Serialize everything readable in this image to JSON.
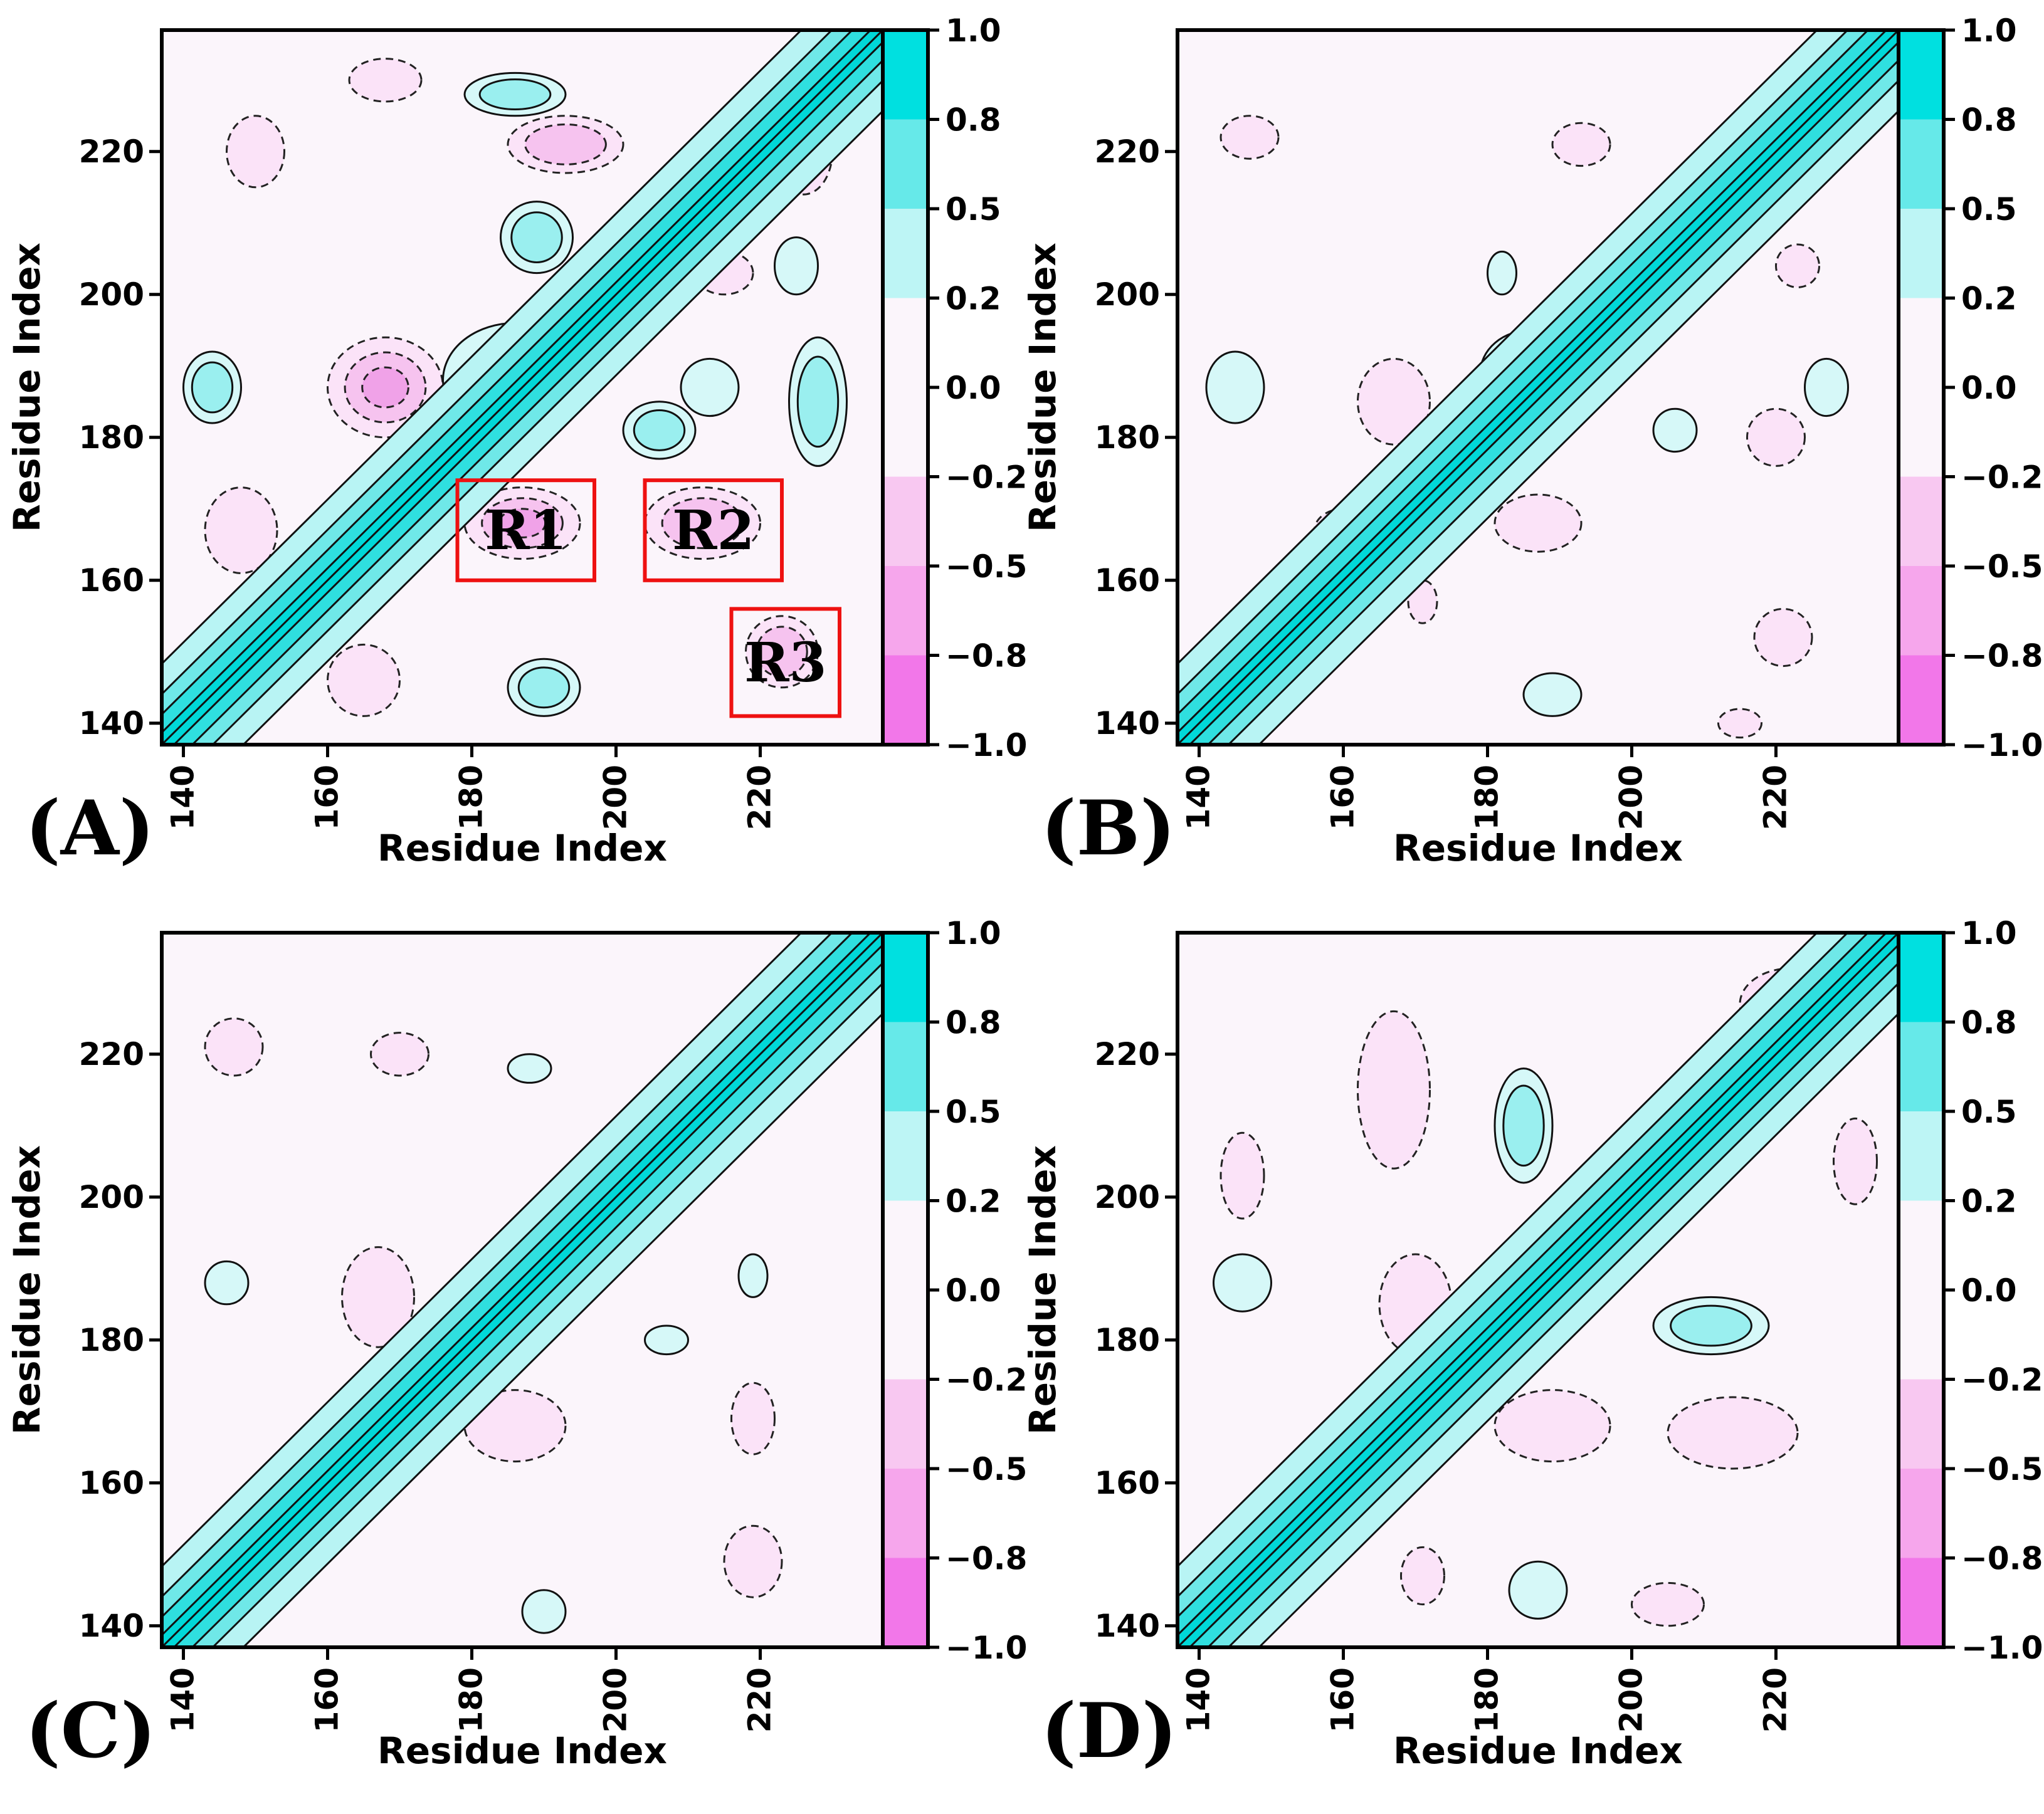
{
  "figure": {
    "title": ""
  },
  "chart_data": [
    {
      "type": "heatmap",
      "panel": "(A)",
      "xlabel": "Residue Index",
      "ylabel": "Residue Index",
      "xlim": [
        137,
        237
      ],
      "ylim": [
        137,
        237
      ],
      "xticks": [
        140,
        160,
        180,
        200,
        220
      ],
      "yticks": [
        140,
        160,
        180,
        200,
        220
      ],
      "diagonal": {
        "range": [
          137,
          237
        ],
        "value": 1.0
      },
      "positive_blobs": [
        {
          "x": 186,
          "y": 188,
          "rx": 10,
          "ry": 8,
          "value": 0.65
        },
        {
          "x": 145,
          "y": 145,
          "rx": 5,
          "ry": 5,
          "value": 0.5
        },
        {
          "x": 190,
          "y": 145,
          "rx": 5,
          "ry": 4,
          "value": 0.4
        },
        {
          "x": 206,
          "y": 181,
          "rx": 5,
          "ry": 4,
          "value": 0.4
        },
        {
          "x": 228,
          "y": 185,
          "rx": 4,
          "ry": 9,
          "value": 0.35
        },
        {
          "x": 189,
          "y": 208,
          "rx": 5,
          "ry": 5,
          "value": 0.4
        },
        {
          "x": 144,
          "y": 187,
          "rx": 4,
          "ry": 5,
          "value": 0.35
        },
        {
          "x": 186,
          "y": 228,
          "rx": 7,
          "ry": 3,
          "value": 0.35
        },
        {
          "x": 225,
          "y": 204,
          "rx": 3,
          "ry": 4,
          "value": 0.3
        },
        {
          "x": 213,
          "y": 187,
          "rx": 4,
          "ry": 4,
          "value": 0.3
        }
      ],
      "negative_blobs": [
        {
          "x": 168,
          "y": 187,
          "rx": 8,
          "ry": 7,
          "value": -0.55
        },
        {
          "x": 187,
          "y": 168,
          "rx": 8,
          "ry": 5,
          "value": -0.5
        },
        {
          "x": 212,
          "y": 168,
          "rx": 8,
          "ry": 5,
          "value": -0.35
        },
        {
          "x": 223,
          "y": 150,
          "rx": 5,
          "ry": 5,
          "value": -0.4
        },
        {
          "x": 148,
          "y": 167,
          "rx": 5,
          "ry": 6,
          "value": -0.3
        },
        {
          "x": 165,
          "y": 146,
          "rx": 5,
          "ry": 5,
          "value": -0.3
        },
        {
          "x": 193,
          "y": 221,
          "rx": 8,
          "ry": 4,
          "value": -0.35
        },
        {
          "x": 150,
          "y": 220,
          "rx": 4,
          "ry": 5,
          "value": -0.3
        },
        {
          "x": 168,
          "y": 230,
          "rx": 5,
          "ry": 3,
          "value": -0.3
        },
        {
          "x": 215,
          "y": 203,
          "rx": 4,
          "ry": 3,
          "value": -0.3
        },
        {
          "x": 226,
          "y": 220,
          "rx": 4,
          "ry": 6,
          "value": -0.3
        },
        {
          "x": 216,
          "y": 222,
          "rx": 4,
          "ry": 3,
          "value": -0.3
        }
      ],
      "regions": [
        {
          "label": "R1",
          "x": [
            178,
            197
          ],
          "y": [
            160,
            174
          ]
        },
        {
          "label": "R2",
          "x": [
            204,
            223
          ],
          "y": [
            160,
            174
          ]
        },
        {
          "label": "R3",
          "x": [
            216,
            231
          ],
          "y": [
            141,
            156
          ]
        }
      ]
    },
    {
      "type": "heatmap",
      "panel": "(B)",
      "xlabel": "Residue Index",
      "ylabel": "Residue Index",
      "xlim": [
        137,
        237
      ],
      "ylim": [
        137,
        237
      ],
      "xticks": [
        140,
        160,
        180,
        200,
        220
      ],
      "yticks": [
        140,
        160,
        180,
        200,
        220
      ],
      "diagonal": {
        "range": [
          137,
          237
        ],
        "value": 1.0
      },
      "positive_blobs": [
        {
          "x": 186,
          "y": 189,
          "rx": 7,
          "ry": 6,
          "value": 0.55
        },
        {
          "x": 145,
          "y": 187,
          "rx": 4,
          "ry": 5,
          "value": 0.3
        },
        {
          "x": 189,
          "y": 144,
          "rx": 4,
          "ry": 3,
          "value": 0.3
        },
        {
          "x": 206,
          "y": 181,
          "rx": 3,
          "ry": 3,
          "value": 0.25
        },
        {
          "x": 227,
          "y": 187,
          "rx": 3,
          "ry": 4,
          "value": 0.25
        },
        {
          "x": 182,
          "y": 203,
          "rx": 2,
          "ry": 3,
          "value": 0.25
        }
      ],
      "negative_blobs": [
        {
          "x": 167,
          "y": 185,
          "rx": 5,
          "ry": 6,
          "value": -0.3
        },
        {
          "x": 187,
          "y": 168,
          "rx": 6,
          "ry": 4,
          "value": -0.3
        },
        {
          "x": 220,
          "y": 180,
          "rx": 4,
          "ry": 4,
          "value": -0.3
        },
        {
          "x": 221,
          "y": 152,
          "rx": 4,
          "ry": 4,
          "value": -0.3
        },
        {
          "x": 147,
          "y": 222,
          "rx": 4,
          "ry": 3,
          "value": -0.3
        },
        {
          "x": 193,
          "y": 221,
          "rx": 4,
          "ry": 3,
          "value": -0.3
        },
        {
          "x": 223,
          "y": 204,
          "rx": 3,
          "ry": 3,
          "value": -0.25
        },
        {
          "x": 171,
          "y": 157,
          "rx": 2,
          "ry": 3,
          "value": -0.25
        },
        {
          "x": 160,
          "y": 167,
          "rx": 4,
          "ry": 3,
          "value": -0.25
        },
        {
          "x": 215,
          "y": 140,
          "rx": 3,
          "ry": 2,
          "value": -0.25
        }
      ],
      "regions": []
    },
    {
      "type": "heatmap",
      "panel": "(C)",
      "xlabel": "Residue Index",
      "ylabel": "Residue Index",
      "xlim": [
        137,
        237
      ],
      "ylim": [
        137,
        237
      ],
      "xticks": [
        140,
        160,
        180,
        200,
        220
      ],
      "yticks": [
        140,
        160,
        180,
        200,
        220
      ],
      "diagonal": {
        "range": [
          137,
          237
        ],
        "value": 1.0
      },
      "positive_blobs": [
        {
          "x": 189,
          "y": 190,
          "rx": 6,
          "ry": 5,
          "value": 0.5
        },
        {
          "x": 146,
          "y": 188,
          "rx": 3,
          "ry": 3,
          "value": 0.25
        },
        {
          "x": 190,
          "y": 142,
          "rx": 3,
          "ry": 3,
          "value": 0.25
        },
        {
          "x": 207,
          "y": 180,
          "rx": 3,
          "ry": 2,
          "value": 0.25
        },
        {
          "x": 188,
          "y": 218,
          "rx": 3,
          "ry": 2,
          "value": 0.25
        },
        {
          "x": 219,
          "y": 189,
          "rx": 2,
          "ry": 3,
          "value": 0.25
        }
      ],
      "negative_blobs": [
        {
          "x": 167,
          "y": 186,
          "rx": 5,
          "ry": 7,
          "value": -0.3
        },
        {
          "x": 186,
          "y": 168,
          "rx": 7,
          "ry": 5,
          "value": -0.3
        },
        {
          "x": 219,
          "y": 149,
          "rx": 4,
          "ry": 5,
          "value": -0.3
        },
        {
          "x": 147,
          "y": 221,
          "rx": 4,
          "ry": 4,
          "value": -0.3
        },
        {
          "x": 170,
          "y": 220,
          "rx": 4,
          "ry": 3,
          "value": -0.25
        },
        {
          "x": 219,
          "y": 169,
          "rx": 3,
          "ry": 5,
          "value": -0.25
        }
      ],
      "regions": []
    },
    {
      "type": "heatmap",
      "panel": "(D)",
      "xlabel": "Residue Index",
      "ylabel": "Residue Index",
      "xlim": [
        137,
        237
      ],
      "ylim": [
        137,
        237
      ],
      "xticks": [
        140,
        160,
        180,
        200,
        220
      ],
      "yticks": [
        140,
        160,
        180,
        200,
        220
      ],
      "diagonal": {
        "range": [
          137,
          237
        ],
        "value": 1.0
      },
      "positive_blobs": [
        {
          "x": 209,
          "y": 209,
          "rx": 8,
          "ry": 7,
          "value": 0.6
        },
        {
          "x": 184,
          "y": 184,
          "rx": 5,
          "ry": 5,
          "value": 0.55
        },
        {
          "x": 211,
          "y": 182,
          "rx": 8,
          "ry": 4,
          "value": 0.35
        },
        {
          "x": 185,
          "y": 210,
          "rx": 4,
          "ry": 8,
          "value": 0.35
        },
        {
          "x": 146,
          "y": 188,
          "rx": 4,
          "ry": 4,
          "value": 0.3
        },
        {
          "x": 187,
          "y": 145,
          "rx": 4,
          "ry": 4,
          "value": 0.3
        }
      ],
      "negative_blobs": [
        {
          "x": 167,
          "y": 215,
          "rx": 5,
          "ry": 11,
          "value": -0.3
        },
        {
          "x": 170,
          "y": 185,
          "rx": 5,
          "ry": 7,
          "value": -0.3
        },
        {
          "x": 189,
          "y": 168,
          "rx": 8,
          "ry": 5,
          "value": -0.3
        },
        {
          "x": 214,
          "y": 167,
          "rx": 9,
          "ry": 5,
          "value": -0.3
        },
        {
          "x": 222,
          "y": 227,
          "rx": 7,
          "ry": 5,
          "value": -0.3
        },
        {
          "x": 146,
          "y": 203,
          "rx": 3,
          "ry": 6,
          "value": -0.25
        },
        {
          "x": 171,
          "y": 147,
          "rx": 3,
          "ry": 4,
          "value": -0.25
        },
        {
          "x": 205,
          "y": 143,
          "rx": 5,
          "ry": 3,
          "value": -0.25
        },
        {
          "x": 231,
          "y": 205,
          "rx": 3,
          "ry": 6,
          "value": -0.25
        }
      ],
      "regions": []
    }
  ],
  "colorbar": {
    "ticks": [
      "1.0",
      "0.8",
      "0.5",
      "0.2",
      "0.0",
      "−0.2",
      "−0.5",
      "−0.8",
      "−1.0"
    ],
    "band_colors": [
      "#00e0e0",
      "#66e9e9",
      "#bdf5f5",
      "#fbf5fb",
      "#fbf5fb",
      "#f8c8f1",
      "#f6a6ec",
      "#f277e9"
    ]
  }
}
